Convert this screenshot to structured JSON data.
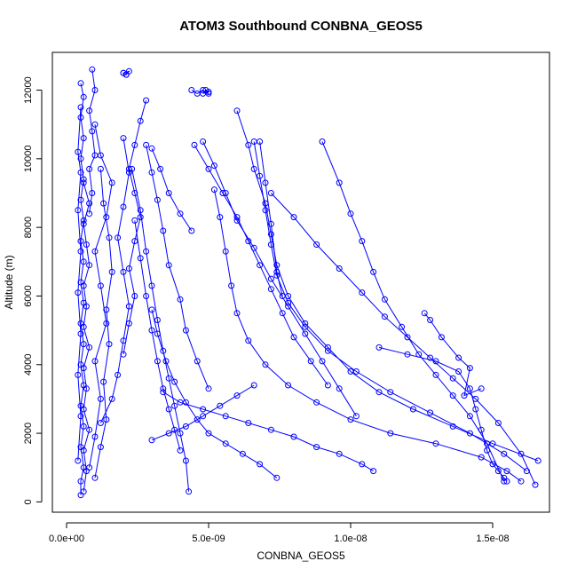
{
  "chart_data": {
    "type": "scatter",
    "title": "ATOM3 Southbound CONBNA_GEOS5",
    "xlabel": "CONBNA_GEOS5",
    "ylabel": "Altitude (m)",
    "xlim": [
      -5e-10,
      1.7e-08
    ],
    "ylim": [
      -300,
      13100
    ],
    "x_ticks": [
      {
        "value": 0,
        "label": "0.0e+00"
      },
      {
        "value": 5e-09,
        "label": "5.0e-09"
      },
      {
        "value": 1e-08,
        "label": "1.0e-08"
      },
      {
        "value": 1.5e-08,
        "label": "1.5e-08"
      }
    ],
    "y_ticks": [
      {
        "value": 0,
        "label": "0"
      },
      {
        "value": 2000,
        "label": "2000"
      },
      {
        "value": 4000,
        "label": "4000"
      },
      {
        "value": 6000,
        "label": "6000"
      },
      {
        "value": 8000,
        "label": "8000"
      },
      {
        "value": 10000,
        "label": "10000"
      },
      {
        "value": 12000,
        "label": "12000"
      }
    ],
    "grid": false,
    "legend": "none",
    "marker": "open-circle",
    "color": "#0000ff",
    "series": [
      {
        "x": [
          5e-10,
          5e-10,
          6e-10,
          5e-10,
          6e-10,
          5e-10,
          6e-10,
          5e-10,
          6e-10,
          5e-10,
          6e-10,
          5e-10,
          6e-10,
          5e-10,
          6e-10,
          5e-10,
          6e-10,
          5e-10,
          6e-10,
          5e-10,
          6e-10,
          5e-10
        ],
        "y": [
          200,
          600,
          1000,
          1600,
          2200,
          2800,
          3400,
          4000,
          4600,
          5200,
          5800,
          6400,
          7000,
          7600,
          8200,
          8800,
          9400,
          10000,
          10600,
          11200,
          11800,
          12200
        ]
      },
      {
        "x": [
          6e-10,
          7e-10,
          6e-10,
          8e-10,
          6e-10,
          7e-10,
          6e-10,
          8e-10,
          6e-10,
          7e-10,
          6e-10,
          8e-10,
          7e-10,
          6e-10,
          8e-10,
          6e-10
        ],
        "y": [
          300,
          900,
          1500,
          2100,
          2700,
          3300,
          3900,
          4500,
          5100,
          5700,
          6300,
          6900,
          7500,
          8100,
          8700,
          9300
        ]
      },
      {
        "x": [
          8e-10,
          9e-10,
          8e-10,
          1e-09,
          9e-10,
          8e-10,
          1e-09,
          9e-10
        ],
        "y": [
          8400,
          9000,
          9700,
          10100,
          10800,
          11400,
          12000,
          12600
        ]
      },
      {
        "x": [
          4e-10,
          5e-10,
          4e-10,
          5e-10,
          4e-10,
          5e-10,
          4e-10,
          5e-10,
          4e-10,
          5e-10
        ],
        "y": [
          1200,
          2500,
          3700,
          4900,
          6100,
          7300,
          8500,
          9600,
          10200,
          11500
        ]
      },
      {
        "x": [
          8e-10,
          1e-09,
          1.2e-09,
          1e-09,
          1.4e-09,
          1.2e-09,
          1e-09,
          1.4e-09,
          1.6e-09,
          1.2e-09,
          1e-09
        ],
        "y": [
          1000,
          1900,
          3000,
          4100,
          5200,
          6300,
          7300,
          8300,
          9300,
          10100,
          11000
        ]
      },
      {
        "x": [
          1e-09,
          1.2e-09,
          1.4e-09,
          1.3e-09,
          1.5e-09,
          1.4e-09,
          1.6e-09,
          1.5e-09,
          1.3e-09,
          1.2e-09
        ],
        "y": [
          700,
          1600,
          2400,
          3500,
          4600,
          5600,
          6700,
          7700,
          8700,
          9700
        ]
      },
      {
        "x": [
          1.2e-09,
          1.6e-09,
          1.8e-09,
          2e-09,
          2.2e-09,
          2e-09,
          1.8e-09,
          2e-09,
          2.2e-09,
          2e-09
        ],
        "y": [
          2300,
          3000,
          3700,
          4700,
          5700,
          6700,
          7700,
          8600,
          9600,
          10600
        ]
      },
      {
        "x": [
          2e-09,
          2.2e-09,
          2.4e-09,
          2.2e-09,
          2.4e-09,
          2.6e-09,
          2.4e-09,
          2.2e-09,
          2.4e-09,
          2.6e-09,
          2.8e-09
        ],
        "y": [
          4300,
          5200,
          6000,
          6800,
          7600,
          8300,
          9000,
          9700,
          10400,
          11100,
          11700
        ]
      },
      {
        "x": [
          2e-09,
          2.1e-09,
          2.2e-09,
          2e-09,
          2.1e-09
        ],
        "y": [
          12500,
          12450,
          12550,
          12500,
          12450
        ]
      },
      {
        "x": [
          2.3e-09,
          2.6e-09,
          2.8e-09,
          3e-09,
          3.2e-09,
          3.4e-09,
          3.6e-09,
          3.8e-09,
          4e-09,
          4.2e-09,
          4.3e-09
        ],
        "y": [
          9700,
          8500,
          7300,
          6300,
          5300,
          4400,
          3600,
          2800,
          2000,
          1200,
          300
        ]
      },
      {
        "x": [
          2.4e-09,
          2.6e-09,
          2.8e-09,
          3e-09,
          3.2e-09,
          3.4e-09,
          3.6e-09,
          3.8e-09,
          4e-09
        ],
        "y": [
          8200,
          7100,
          6000,
          5000,
          4100,
          3300,
          2700,
          2100,
          1500
        ]
      },
      {
        "x": [
          2.8e-09,
          3e-09,
          3.2e-09,
          3.4e-09,
          3.6e-09,
          4e-09,
          4.2e-09,
          4.6e-09,
          5e-09
        ],
        "y": [
          10400,
          9600,
          8800,
          7900,
          6900,
          5900,
          5000,
          4100,
          3300
        ]
      },
      {
        "x": [
          3e-09,
          3.2e-09,
          3.5e-09,
          3.8e-09,
          4.2e-09,
          4.6e-09,
          5e-09,
          5.6e-09,
          6.2e-09,
          6.8e-09,
          7.4e-09
        ],
        "y": [
          5600,
          4900,
          4100,
          3500,
          2900,
          2400,
          2000,
          1700,
          1400,
          1100,
          700
        ]
      },
      {
        "x": [
          3e-09,
          3.3e-09,
          3.6e-09,
          4e-09,
          4.4e-09
        ],
        "y": [
          10300,
          9700,
          9000,
          8400,
          7900
        ]
      },
      {
        "x": [
          3.4e-09,
          4e-09,
          4.8e-09,
          5.6e-09,
          6.4e-09,
          7.2e-09,
          8e-09,
          8.8e-09,
          9.6e-09,
          1.04e-08,
          1.08e-08
        ],
        "y": [
          3200,
          2900,
          2700,
          2500,
          2300,
          2100,
          1900,
          1600,
          1400,
          1100,
          900
        ]
      },
      {
        "x": [
          4.4e-09,
          4.6e-09,
          4.8e-09,
          5e-09,
          4.9e-09,
          5e-09,
          4.8e-09
        ],
        "y": [
          12000,
          11900,
          12000,
          11900,
          12000,
          11950,
          11900
        ]
      },
      {
        "x": [
          4.5e-09,
          5e-09,
          5.5e-09,
          6e-09,
          6.4e-09,
          6.8e-09,
          7.2e-09,
          7.6e-09,
          8e-09,
          8.6e-09,
          9.2e-09
        ],
        "y": [
          10400,
          9700,
          9000,
          8300,
          7600,
          6900,
          6200,
          5500,
          4800,
          4100,
          3400
        ]
      },
      {
        "x": [
          4.8e-09,
          5.2e-09,
          5.6e-09,
          6e-09,
          6.6e-09,
          7.2e-09,
          7.8e-09,
          8.4e-09,
          9e-09,
          9.6e-09,
          1.02e-08
        ],
        "y": [
          10500,
          9800,
          9000,
          8200,
          7400,
          6500,
          5700,
          4900,
          4100,
          3300,
          2500
        ]
      },
      {
        "x": [
          5.2e-09,
          5.4e-09,
          5.6e-09,
          5.8e-09,
          6e-09,
          6.4e-09,
          7e-09,
          7.8e-09,
          8.8e-09,
          1e-08,
          1.14e-08,
          1.3e-08,
          1.46e-08,
          1.55e-08,
          1.6e-08
        ],
        "y": [
          9100,
          8300,
          7300,
          6300,
          5500,
          4700,
          4000,
          3400,
          2900,
          2400,
          2000,
          1700,
          1300,
          900,
          600
        ]
      },
      {
        "x": [
          6e-09,
          6.4e-09,
          6.6e-09,
          7e-09,
          7.2e-09,
          7.4e-09,
          7.8e-09,
          8.4e-09,
          9.2e-09,
          1e-08,
          1.1e-08,
          1.22e-08,
          1.36e-08,
          1.5e-08,
          1.66e-08
        ],
        "y": [
          11400,
          10400,
          9700,
          8700,
          7800,
          6900,
          6000,
          5200,
          4500,
          3800,
          3200,
          2700,
          2200,
          1700,
          1200
        ]
      },
      {
        "x": [
          6.6e-09,
          6.8e-09,
          7e-09,
          7.2e-09,
          7.4e-09,
          7.8e-09,
          8.4e-09,
          9.2e-09,
          1.02e-08,
          1.14e-08,
          1.28e-08,
          1.42e-08,
          1.54e-08,
          1.62e-08
        ],
        "y": [
          10500,
          9500,
          8500,
          7500,
          6600,
          5800,
          5100,
          4400,
          3800,
          3200,
          2600,
          2000,
          1400,
          900
        ]
      },
      {
        "x": [
          6.8e-09,
          7e-09,
          7.2e-09,
          7.4e-09,
          7.6e-09
        ],
        "y": [
          10500,
          9300,
          8100,
          6700,
          6000
        ]
      },
      {
        "x": [
          7.2e-09,
          8e-09,
          8.8e-09,
          9.6e-09,
          1.04e-08,
          1.12e-08,
          1.2e-08,
          1.28e-08,
          1.36e-08,
          1.44e-08,
          1.52e-08,
          1.6e-08,
          1.65e-08
        ],
        "y": [
          9000,
          8300,
          7500,
          6800,
          6100,
          5400,
          4800,
          4200,
          3600,
          3000,
          2300,
          1400,
          500
        ]
      },
      {
        "x": [
          9e-09,
          9.6e-09,
          1e-08,
          1.04e-08,
          1.08e-08,
          1.12e-08,
          1.18e-08,
          1.24e-08,
          1.3e-08,
          1.36e-08,
          1.42e-08,
          1.48e-08,
          1.54e-08
        ],
        "y": [
          10500,
          9300,
          8400,
          7600,
          6700,
          5900,
          5100,
          4300,
          3700,
          3100,
          2500,
          1700,
          600
        ]
      },
      {
        "x": [
          1.1e-08,
          1.2e-08,
          1.3e-08,
          1.38e-08,
          1.42e-08,
          1.44e-08,
          1.46e-08,
          1.48e-08,
          1.5e-08,
          1.52e-08,
          1.54e-08,
          1.55e-08
        ],
        "y": [
          4500,
          4300,
          4100,
          3800,
          3300,
          2700,
          2100,
          1500,
          1100,
          900,
          700,
          600
        ]
      },
      {
        "x": [
          1.26e-08,
          1.28e-08,
          1.32e-08,
          1.38e-08,
          1.42e-08,
          1.4e-08,
          1.46e-08
        ],
        "y": [
          5500,
          5300,
          4800,
          4200,
          3900,
          3100,
          3300
        ]
      },
      {
        "x": [
          3e-09,
          3.6e-09,
          4.2e-09,
          4.8e-09,
          5.4e-09,
          6e-09,
          6.6e-09
        ],
        "y": [
          1800,
          2000,
          2200,
          2500,
          2800,
          3100,
          3400
        ]
      }
    ]
  }
}
